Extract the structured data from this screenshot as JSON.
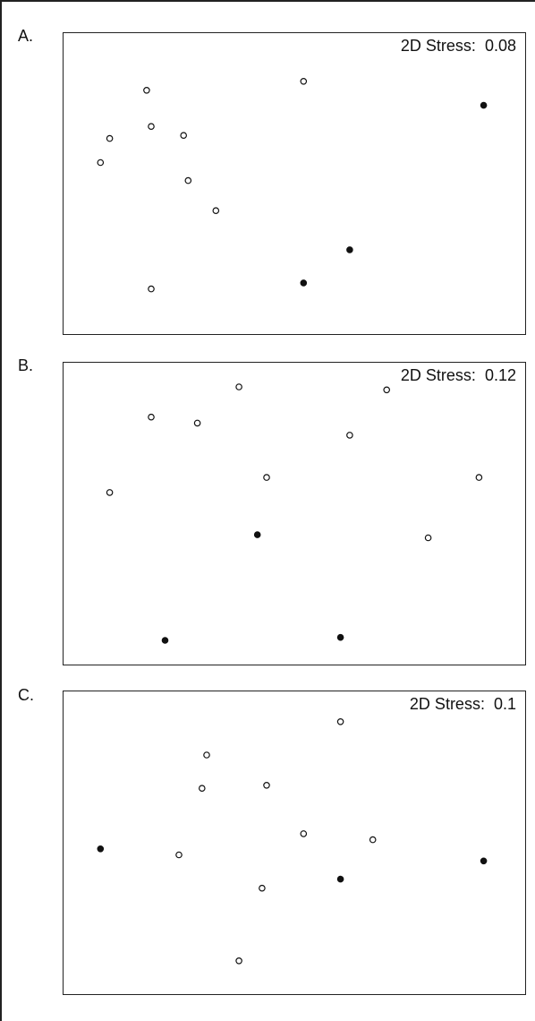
{
  "chart_data": [
    {
      "type": "scatter",
      "panel_label": "A.",
      "stress_label": "2D Stress:",
      "stress_value": "0.08",
      "xlim": [
        0,
        1
      ],
      "ylim": [
        0,
        1
      ],
      "grid": false,
      "points": [
        {
          "x": 0.18,
          "y": 0.81,
          "filled": false
        },
        {
          "x": 0.52,
          "y": 0.84,
          "filled": false
        },
        {
          "x": 0.91,
          "y": 0.76,
          "filled": true
        },
        {
          "x": 0.1,
          "y": 0.65,
          "filled": false
        },
        {
          "x": 0.19,
          "y": 0.69,
          "filled": false
        },
        {
          "x": 0.26,
          "y": 0.66,
          "filled": false
        },
        {
          "x": 0.08,
          "y": 0.57,
          "filled": false
        },
        {
          "x": 0.27,
          "y": 0.51,
          "filled": false
        },
        {
          "x": 0.33,
          "y": 0.41,
          "filled": false
        },
        {
          "x": 0.62,
          "y": 0.28,
          "filled": true
        },
        {
          "x": 0.52,
          "y": 0.17,
          "filled": true
        },
        {
          "x": 0.19,
          "y": 0.15,
          "filled": false
        }
      ]
    },
    {
      "type": "scatter",
      "panel_label": "B.",
      "stress_label": "2D Stress:",
      "stress_value": "0.12",
      "xlim": [
        0,
        1
      ],
      "ylim": [
        0,
        1
      ],
      "grid": false,
      "points": [
        {
          "x": 0.38,
          "y": 0.92,
          "filled": false
        },
        {
          "x": 0.7,
          "y": 0.91,
          "filled": false
        },
        {
          "x": 0.19,
          "y": 0.82,
          "filled": false
        },
        {
          "x": 0.29,
          "y": 0.8,
          "filled": false
        },
        {
          "x": 0.62,
          "y": 0.76,
          "filled": false
        },
        {
          "x": 0.44,
          "y": 0.62,
          "filled": false
        },
        {
          "x": 0.9,
          "y": 0.62,
          "filled": false
        },
        {
          "x": 0.1,
          "y": 0.57,
          "filled": false
        },
        {
          "x": 0.42,
          "y": 0.43,
          "filled": true
        },
        {
          "x": 0.79,
          "y": 0.42,
          "filled": false
        },
        {
          "x": 0.6,
          "y": 0.09,
          "filled": true
        },
        {
          "x": 0.22,
          "y": 0.08,
          "filled": true
        }
      ]
    },
    {
      "type": "scatter",
      "panel_label": "C.",
      "stress_label": "2D Stress:",
      "stress_value": "0.1",
      "xlim": [
        0,
        1
      ],
      "ylim": [
        0,
        1
      ],
      "grid": false,
      "points": [
        {
          "x": 0.6,
          "y": 0.9,
          "filled": false
        },
        {
          "x": 0.31,
          "y": 0.79,
          "filled": false
        },
        {
          "x": 0.3,
          "y": 0.68,
          "filled": false
        },
        {
          "x": 0.44,
          "y": 0.69,
          "filled": false
        },
        {
          "x": 0.52,
          "y": 0.53,
          "filled": false
        },
        {
          "x": 0.67,
          "y": 0.51,
          "filled": false
        },
        {
          "x": 0.08,
          "y": 0.48,
          "filled": true
        },
        {
          "x": 0.25,
          "y": 0.46,
          "filled": false
        },
        {
          "x": 0.91,
          "y": 0.44,
          "filled": true
        },
        {
          "x": 0.6,
          "y": 0.38,
          "filled": true
        },
        {
          "x": 0.43,
          "y": 0.35,
          "filled": false
        },
        {
          "x": 0.38,
          "y": 0.11,
          "filled": false
        }
      ]
    }
  ]
}
